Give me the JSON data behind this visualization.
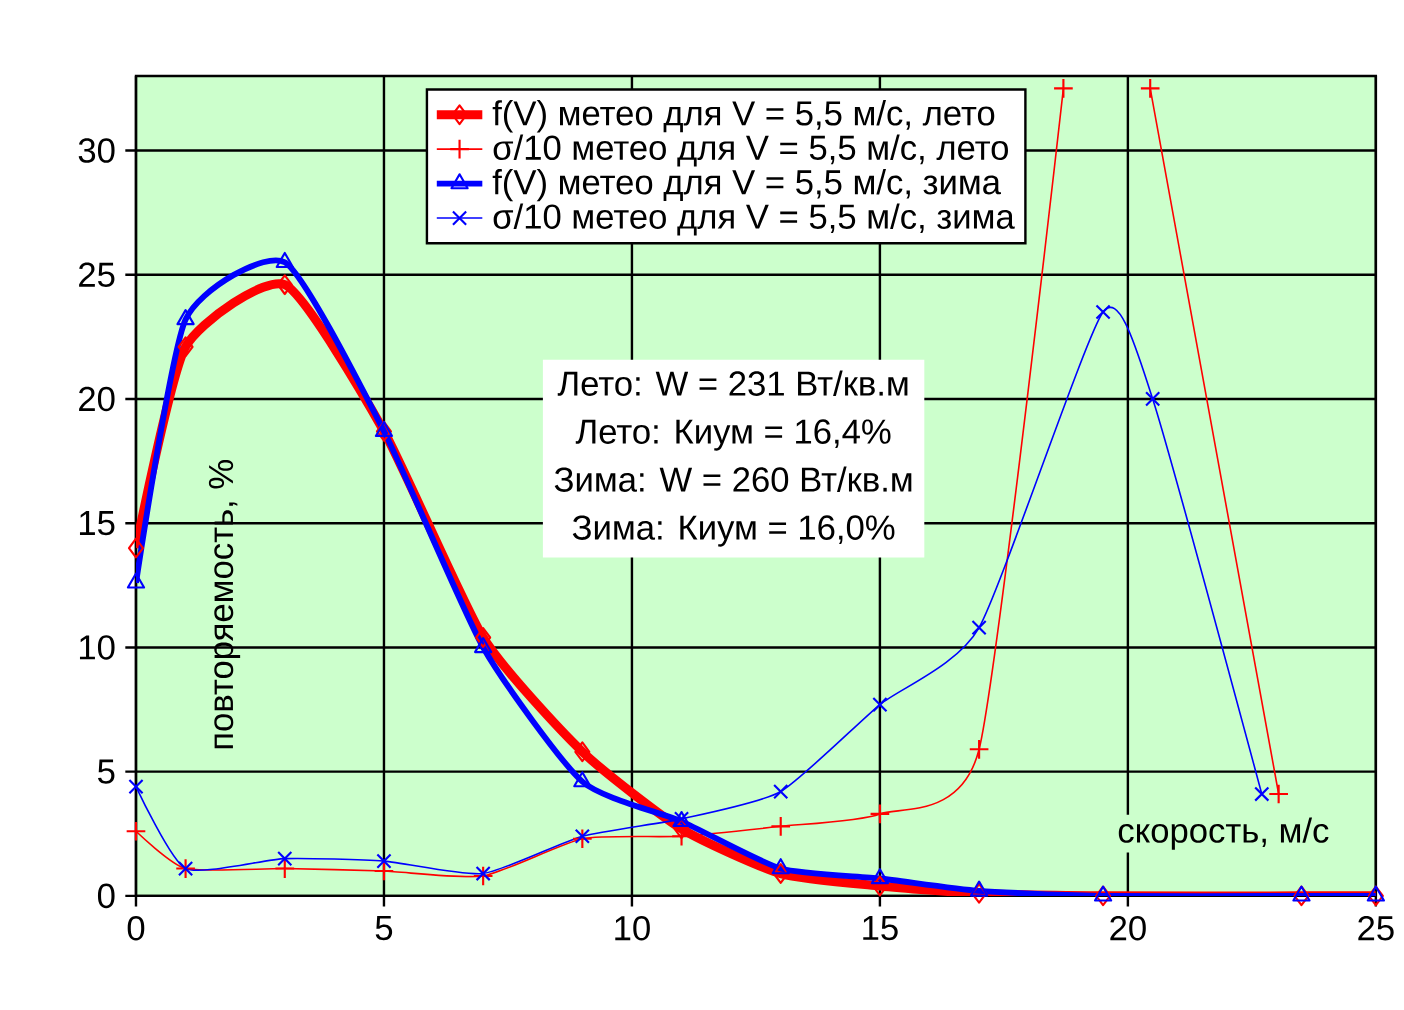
{
  "chart_data": {
    "type": "line",
    "xlabel": "скорость, м/с",
    "ylabel": "повторяемость, %",
    "xlim": [
      0,
      25
    ],
    "ylim": [
      0,
      33
    ],
    "xticks": [
      0,
      5,
      10,
      15,
      20,
      25
    ],
    "yticks": [
      0,
      5,
      10,
      15,
      20,
      25,
      30
    ],
    "grid": true,
    "legend": "top",
    "annotations": [
      "Лето: W = 231 Вт/кв.м",
      "Лето: Киум = 16,4%",
      "Зима: W = 260 Вт/кв.м",
      "Зима:  Киум = 16,0%"
    ],
    "series": [
      {
        "name": "f(V) метео  для V = 5,5 м/с, лето",
        "color": "#ff0000",
        "marker": "diamond",
        "x": [
          0,
          1,
          3,
          5,
          7,
          9,
          11,
          13,
          15,
          17,
          19.5,
          23.5,
          25
        ],
        "values": [
          14.0,
          22.1,
          24.6,
          18.7,
          10.4,
          5.8,
          2.7,
          0.9,
          0.4,
          0.1,
          0,
          0,
          0
        ]
      },
      {
        "name": "σ/10 метео  для V = 5,5 м/с, лето",
        "color": "#ff0000",
        "marker": "plus",
        "x": [
          0,
          1,
          3,
          5,
          7,
          9,
          11,
          13,
          15,
          17,
          18.7,
          19.5,
          20.45,
          23.04
        ],
        "values": [
          2.6,
          1.1,
          1.1,
          1.0,
          0.8,
          2.3,
          2.4,
          2.8,
          3.3,
          5.9,
          32.5,
          null,
          32.5,
          4.1
        ]
      },
      {
        "name": "f(V) метео  для V = 5,5 м/с, зима",
        "color": "#0000ff",
        "marker": "triangle",
        "x": [
          0,
          1,
          3,
          5,
          7,
          9,
          11,
          13,
          15,
          17,
          19.5,
          23.5,
          25
        ],
        "values": [
          12.6,
          23.2,
          25.5,
          18.7,
          10.0,
          4.6,
          3.0,
          1.1,
          0.7,
          0.2,
          0,
          0,
          0
        ]
      },
      {
        "name": "σ/10 метео  для V = 5,5 м/с, зима",
        "color": "#0000ff",
        "marker": "cross",
        "x": [
          0,
          1,
          3,
          5,
          7,
          9,
          11,
          13,
          15,
          17,
          19.5,
          20.5,
          22.7
        ],
        "values": [
          4.4,
          1.1,
          1.5,
          1.4,
          0.9,
          2.4,
          3.1,
          4.2,
          7.7,
          10.8,
          23.5,
          20.0,
          4.1
        ]
      }
    ]
  }
}
